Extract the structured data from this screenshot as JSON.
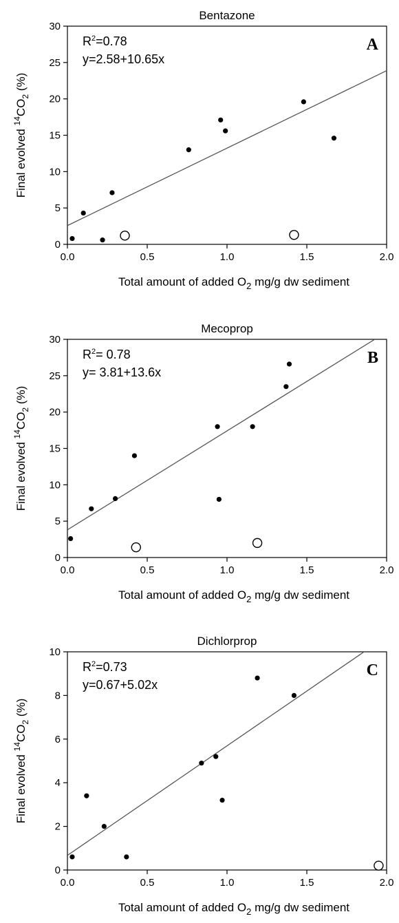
{
  "chart_data": [
    {
      "type": "scatter",
      "title": "Bentazone",
      "panel_label": "A",
      "xlabel_prefix": "Total amount of added O",
      "xlabel_sub": "2",
      "xlabel_suffix": " mg/g dw sediment",
      "ylabel_prefix": "Final evolved ",
      "ylabel_sup": "14",
      "ylabel_mid": "CO",
      "ylabel_sub": "2",
      "ylabel_suffix": " (%)",
      "xlim": [
        0,
        2.0
      ],
      "ylim": [
        0,
        30
      ],
      "xticks": [
        0.0,
        0.5,
        1.0,
        1.5,
        2.0
      ],
      "xtick_labels": [
        "0.0",
        "0.5",
        "1.0",
        "1.5",
        "2.0"
      ],
      "yticks": [
        0,
        5,
        10,
        15,
        20,
        25,
        30
      ],
      "ytick_labels": [
        "0",
        "5",
        "10",
        "15",
        "20",
        "25",
        "30"
      ],
      "r2_prefix": "R",
      "r2_sup": "2",
      "r2_value": "=0.78",
      "equation": "y=2.58+10.65x",
      "regression": {
        "intercept": 2.58,
        "slope": 10.65
      },
      "filled_points": [
        [
          0.03,
          0.8
        ],
        [
          0.1,
          4.3
        ],
        [
          0.22,
          0.6
        ],
        [
          0.28,
          7.1
        ],
        [
          0.76,
          13.0
        ],
        [
          0.96,
          17.1
        ],
        [
          0.99,
          15.6
        ],
        [
          1.48,
          19.6
        ],
        [
          1.67,
          14.6
        ]
      ],
      "open_points": [
        [
          0.36,
          1.2
        ],
        [
          1.42,
          1.3
        ]
      ]
    },
    {
      "type": "scatter",
      "title": "Mecoprop",
      "panel_label": "B",
      "xlabel_prefix": "Total amount of added O",
      "xlabel_sub": "2",
      "xlabel_suffix": " mg/g dw sediment",
      "ylabel_prefix": "Final evolved ",
      "ylabel_sup": "14",
      "ylabel_mid": "CO",
      "ylabel_sub": "2",
      "ylabel_suffix": " (%)",
      "xlim": [
        0,
        2.0
      ],
      "ylim": [
        0,
        30
      ],
      "xticks": [
        0.0,
        0.5,
        1.0,
        1.5,
        2.0
      ],
      "xtick_labels": [
        "0.0",
        "0.5",
        "1.0",
        "1.5",
        "2.0"
      ],
      "yticks": [
        0,
        5,
        10,
        15,
        20,
        25,
        30
      ],
      "ytick_labels": [
        "0",
        "5",
        "10",
        "15",
        "20",
        "25",
        "30"
      ],
      "r2_prefix": "R",
      "r2_sup": "2",
      "r2_value": "= 0.78",
      "equation": "y= 3.81+13.6x",
      "regression": {
        "intercept": 3.81,
        "slope": 13.6
      },
      "filled_points": [
        [
          0.02,
          2.6
        ],
        [
          0.15,
          6.7
        ],
        [
          0.3,
          8.1
        ],
        [
          0.42,
          14.0
        ],
        [
          0.94,
          18.0
        ],
        [
          0.95,
          8.0
        ],
        [
          1.16,
          18.0
        ],
        [
          1.37,
          23.5
        ],
        [
          1.39,
          26.6
        ]
      ],
      "open_points": [
        [
          0.43,
          1.4
        ],
        [
          1.19,
          2.0
        ]
      ]
    },
    {
      "type": "scatter",
      "title": "Dichlorprop",
      "panel_label": "C",
      "xlabel_prefix": "Total amount of added O",
      "xlabel_sub": "2",
      "xlabel_suffix": " mg/g dw sediment",
      "ylabel_prefix": "Final evolved ",
      "ylabel_sup": "14",
      "ylabel_mid": "CO",
      "ylabel_sub": "2",
      "ylabel_suffix": " (%)",
      "xlim": [
        0,
        2.0
      ],
      "ylim": [
        0,
        10
      ],
      "xticks": [
        0.0,
        0.5,
        1.0,
        1.5,
        2.0
      ],
      "xtick_labels": [
        "0.0",
        "0.5",
        "1.0",
        "1.5",
        "2.0"
      ],
      "yticks": [
        0,
        2,
        4,
        6,
        8,
        10
      ],
      "ytick_labels": [
        "0",
        "2",
        "4",
        "6",
        "8",
        "10"
      ],
      "r2_prefix": "R",
      "r2_sup": "2",
      "r2_value": "=0.73",
      "equation": "y=0.67+5.02x",
      "regression": {
        "intercept": 0.67,
        "slope": 5.02
      },
      "filled_points": [
        [
          0.03,
          0.6
        ],
        [
          0.12,
          3.4
        ],
        [
          0.23,
          2.0
        ],
        [
          0.37,
          0.6
        ],
        [
          0.84,
          4.9
        ],
        [
          0.93,
          5.2
        ],
        [
          0.97,
          3.2
        ],
        [
          1.19,
          8.8
        ],
        [
          1.42,
          8.0
        ]
      ],
      "open_points": [
        [
          1.95,
          0.2
        ]
      ]
    }
  ]
}
